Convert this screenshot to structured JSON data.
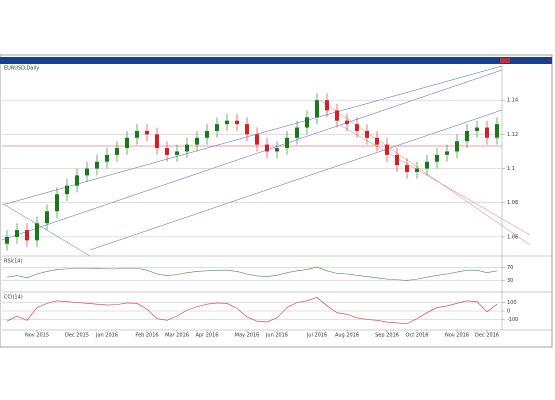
{
  "chart_data": [
    {
      "type": "candlestick",
      "title": "EURUSD,Daily",
      "categories": [
        null,
        null,
        null,
        "Nov 2015",
        null,
        null,
        null,
        "Dec 2015",
        null,
        null,
        "Jan 2016",
        null,
        null,
        null,
        "Feb 2016",
        null,
        null,
        "Mar 2016",
        null,
        null,
        "Apr 2016",
        null,
        null,
        null,
        "May 2016",
        null,
        null,
        "Jun 2016",
        null,
        null,
        null,
        "Jul 2016",
        null,
        null,
        "Aug 2016",
        null,
        null,
        null,
        "Sep 2016",
        null,
        null,
        "Oct 2016",
        null,
        null,
        null,
        "Nov 2016",
        null,
        null,
        "Dec 2016",
        null
      ],
      "open": [
        1.056,
        1.06,
        1.064,
        1.058,
        1.068,
        1.075,
        1.085,
        1.09,
        1.096,
        1.1,
        1.104,
        1.108,
        1.112,
        1.118,
        1.122,
        1.12,
        1.112,
        1.108,
        1.11,
        1.114,
        1.118,
        1.122,
        1.126,
        1.128,
        1.126,
        1.12,
        1.114,
        1.11,
        1.112,
        1.118,
        1.124,
        1.13,
        1.14,
        1.134,
        1.128,
        1.126,
        1.122,
        1.118,
        1.114,
        1.108,
        1.102,
        1.098,
        1.1,
        1.104,
        1.108,
        1.11,
        1.116,
        1.122,
        1.124,
        1.118
      ],
      "high": [
        1.064,
        1.068,
        1.068,
        1.072,
        1.079,
        1.089,
        1.094,
        1.1,
        1.104,
        1.108,
        1.112,
        1.116,
        1.122,
        1.126,
        1.126,
        1.124,
        1.116,
        1.114,
        1.118,
        1.122,
        1.126,
        1.13,
        1.132,
        1.132,
        1.13,
        1.124,
        1.118,
        1.116,
        1.122,
        1.128,
        1.134,
        1.144,
        1.144,
        1.138,
        1.132,
        1.13,
        1.126,
        1.122,
        1.118,
        1.112,
        1.106,
        1.104,
        1.108,
        1.112,
        1.114,
        1.12,
        1.126,
        1.128,
        1.128,
        1.13
      ],
      "low": [
        1.052,
        1.056,
        1.054,
        1.054,
        1.064,
        1.071,
        1.081,
        1.086,
        1.092,
        1.096,
        1.1,
        1.104,
        1.108,
        1.114,
        1.116,
        1.108,
        1.104,
        1.104,
        1.106,
        1.11,
        1.114,
        1.118,
        1.122,
        1.122,
        1.116,
        1.11,
        1.106,
        1.106,
        1.108,
        1.114,
        1.12,
        1.126,
        1.13,
        1.124,
        1.122,
        1.118,
        1.114,
        1.11,
        1.104,
        1.098,
        1.094,
        1.094,
        1.096,
        1.1,
        1.104,
        1.106,
        1.112,
        1.118,
        1.114,
        1.114
      ],
      "close": [
        1.06,
        1.064,
        1.058,
        1.068,
        1.075,
        1.085,
        1.09,
        1.096,
        1.1,
        1.104,
        1.108,
        1.112,
        1.118,
        1.122,
        1.12,
        1.112,
        1.108,
        1.11,
        1.114,
        1.118,
        1.122,
        1.126,
        1.128,
        1.126,
        1.12,
        1.114,
        1.11,
        1.112,
        1.118,
        1.124,
        1.13,
        1.14,
        1.134,
        1.128,
        1.126,
        1.122,
        1.118,
        1.114,
        1.108,
        1.102,
        1.098,
        1.1,
        1.104,
        1.108,
        1.11,
        1.116,
        1.122,
        1.124,
        1.118,
        1.126
      ],
      "up_color": "#1a7a1a",
      "down_color": "#d42020",
      "ylim": [
        1.05,
        1.16
      ],
      "yticks": [
        1.06,
        1.08,
        1.1,
        1.12,
        1.14
      ],
      "grid": true
    },
    {
      "type": "line",
      "title": "RSI(14)",
      "color": "#3a9a3a",
      "values": [
        40,
        45,
        38,
        50,
        58,
        64,
        66,
        68,
        68,
        67,
        66,
        66,
        68,
        68,
        62,
        50,
        45,
        48,
        54,
        58,
        60,
        62,
        62,
        58,
        50,
        44,
        42,
        46,
        54,
        60,
        64,
        72,
        60,
        52,
        50,
        46,
        42,
        38,
        34,
        32,
        30,
        34,
        40,
        46,
        50,
        56,
        62,
        62,
        54,
        60
      ],
      "ylim": [
        0,
        100
      ],
      "yticks": [
        30,
        70
      ],
      "grid": true
    },
    {
      "type": "line",
      "title": "CCI(14)",
      "color": "#e03030",
      "values": [
        -120,
        -60,
        -110,
        40,
        90,
        120,
        110,
        100,
        90,
        80,
        70,
        75,
        95,
        90,
        20,
        -90,
        -110,
        -60,
        10,
        50,
        80,
        95,
        90,
        30,
        -70,
        -120,
        -130,
        -80,
        40,
        100,
        120,
        160,
        60,
        -20,
        -40,
        -80,
        -100,
        -110,
        -130,
        -140,
        -150,
        -90,
        -20,
        40,
        60,
        90,
        120,
        110,
        -10,
        80
      ],
      "ylim": [
        -200,
        200
      ],
      "yticks": [
        -100,
        0,
        100
      ],
      "grid": true
    }
  ]
}
